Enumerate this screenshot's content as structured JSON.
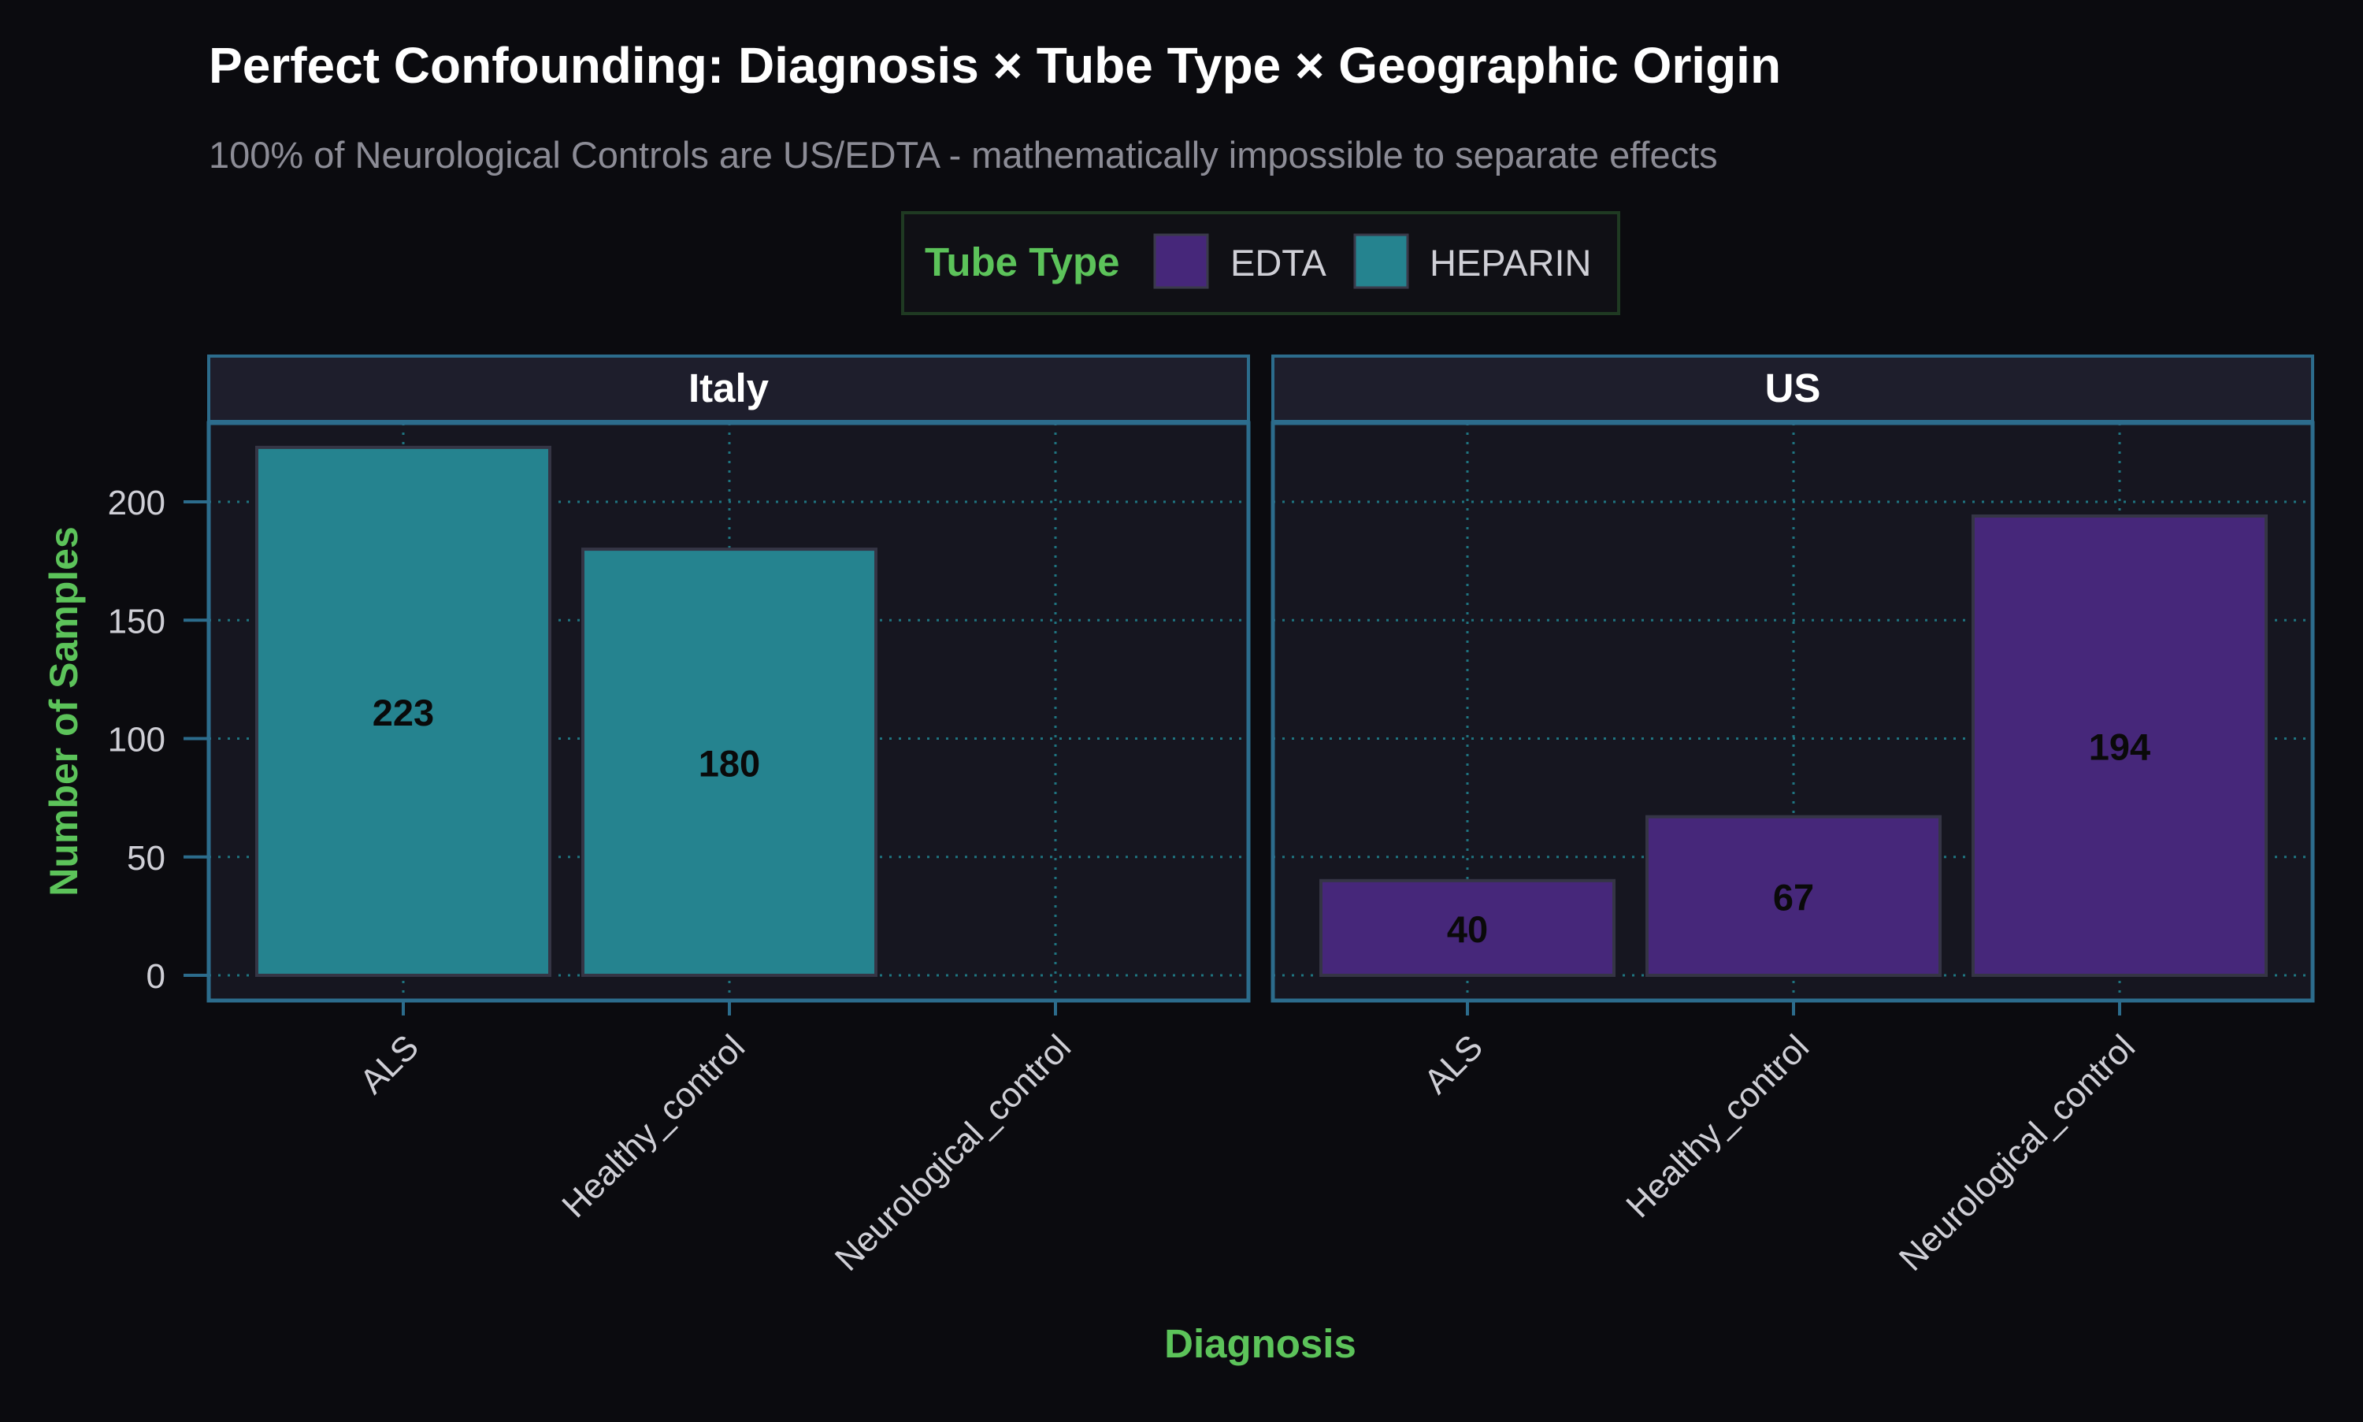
{
  "chart_data": {
    "type": "bar",
    "title": "Perfect Confounding: Diagnosis × Tube Type × Geographic Origin",
    "subtitle": "100% of Neurological Controls are US/EDTA - mathematically impossible to separate effects",
    "xlabel": "Diagnosis",
    "ylabel": "Number of Samples",
    "categories": [
      "ALS",
      "Healthy_control",
      "Neurological_control"
    ],
    "yticks": [
      0,
      50,
      100,
      150,
      200
    ],
    "ylim": [
      0,
      230
    ],
    "grid": true,
    "legend": {
      "title": "Tube Type",
      "position": "top",
      "entries": [
        {
          "name": "EDTA",
          "color": "#46277a"
        },
        {
          "name": "HEPARIN",
          "color": "#25838f"
        }
      ]
    },
    "facets": [
      {
        "label": "Italy",
        "bars": [
          {
            "category": "ALS",
            "value": 223,
            "tube": "HEPARIN"
          },
          {
            "category": "Healthy_control",
            "value": 180,
            "tube": "HEPARIN"
          }
        ]
      },
      {
        "label": "US",
        "bars": [
          {
            "category": "ALS",
            "value": 40,
            "tube": "EDTA"
          },
          {
            "category": "Healthy_control",
            "value": 67,
            "tube": "EDTA"
          },
          {
            "category": "Neurological_control",
            "value": 194,
            "tube": "EDTA"
          }
        ]
      }
    ]
  },
  "colors": {
    "background": "#0b0b0f",
    "panel": "#161620",
    "strip": "#1e1e2c",
    "panel_border": "#2c6c8c",
    "grid": "#1f7480",
    "accent_green": "#5cc35a",
    "title_text": "#ffffff",
    "subtitle_text": "#8c8c96",
    "tick_text": "#cfcfd6",
    "value_label": "#0a0a0a"
  }
}
